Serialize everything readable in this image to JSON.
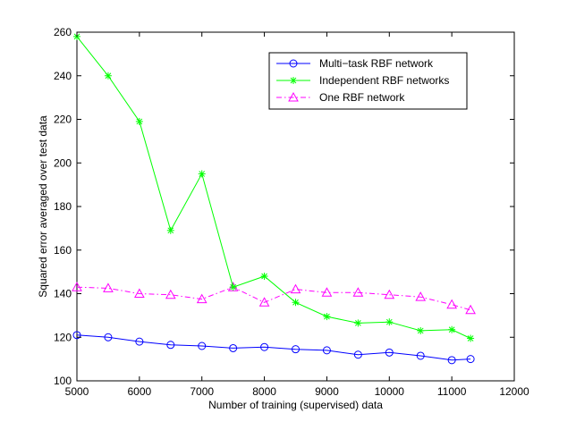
{
  "chart_data": {
    "type": "line",
    "xlabel": "Number of training (supervised) data",
    "ylabel": "Squared error averaged over test data",
    "xlim": [
      5000,
      12000
    ],
    "ylim": [
      100,
      260
    ],
    "xticks": [
      "5000",
      "6000",
      "7000",
      "8000",
      "9000",
      "10000",
      "11000",
      "12000"
    ],
    "yticks": [
      "100",
      "120",
      "140",
      "160",
      "180",
      "200",
      "220",
      "240",
      "260"
    ],
    "grid": false,
    "legend_position": "top-right",
    "series": [
      {
        "name": "Multi−task RBF network",
        "color": "#0000ff",
        "line_style": "solid",
        "marker": "circle",
        "x": [
          5000,
          5500,
          6000,
          6500,
          7000,
          7500,
          8000,
          8500,
          9000,
          9500,
          10000,
          10500,
          11000,
          11300
        ],
        "values": [
          121,
          120,
          118,
          116.5,
          116,
          115,
          115.5,
          114.5,
          114,
          112,
          113,
          111.5,
          109.5,
          110
        ]
      },
      {
        "name": "Independent RBF networks",
        "color": "#00ff00",
        "line_style": "solid",
        "marker": "asterisk",
        "x": [
          5000,
          5500,
          6000,
          6500,
          7000,
          7500,
          8000,
          8500,
          9000,
          9500,
          10000,
          10500,
          11000,
          11300
        ],
        "values": [
          258,
          240,
          219,
          169,
          195,
          143,
          148,
          136,
          129.5,
          126.5,
          127,
          123,
          123.5,
          119.5
        ]
      },
      {
        "name": "One RBF network",
        "color": "#ff00ff",
        "line_style": "dash-dot",
        "marker": "triangle",
        "x": [
          5000,
          5500,
          6000,
          6500,
          7000,
          7500,
          8000,
          8500,
          9000,
          9500,
          10000,
          10500,
          11000,
          11300
        ],
        "values": [
          143,
          142.5,
          140,
          139.5,
          137.5,
          143,
          136,
          142,
          140.5,
          140.5,
          139.5,
          138.5,
          135,
          132.5
        ]
      }
    ]
  }
}
